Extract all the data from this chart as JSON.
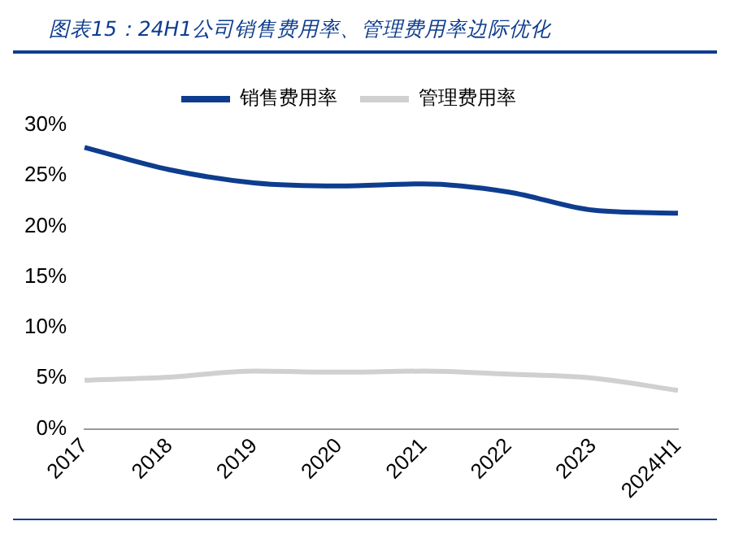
{
  "chart_data": {
    "type": "line",
    "title": "图表15：24H1公司销售费用率、管理费用率边际优化",
    "categories": [
      "2017",
      "2018",
      "2019",
      "2020",
      "2021",
      "2022",
      "2023",
      "2024H1"
    ],
    "series": [
      {
        "name": "销售费用率",
        "color": "#0e3d8f",
        "values": [
          27.8,
          25.6,
          24.3,
          24.0,
          24.2,
          23.4,
          21.6,
          21.3
        ]
      },
      {
        "name": "管理费用率",
        "color": "#d0d0d0",
        "values": [
          4.8,
          5.1,
          5.7,
          5.6,
          5.7,
          5.4,
          5.0,
          3.8
        ]
      }
    ],
    "ylim": [
      0,
      30
    ],
    "yticks": [
      {
        "value": 0,
        "label": "0%"
      },
      {
        "value": 5,
        "label": "5%"
      },
      {
        "value": 10,
        "label": "10%"
      },
      {
        "value": 15,
        "label": "15%"
      },
      {
        "value": 20,
        "label": "20%"
      },
      {
        "value": 25,
        "label": "25%"
      },
      {
        "value": 30,
        "label": "30%"
      }
    ],
    "grid": false,
    "legend": "top",
    "marker": "none",
    "line_style": "solid"
  }
}
